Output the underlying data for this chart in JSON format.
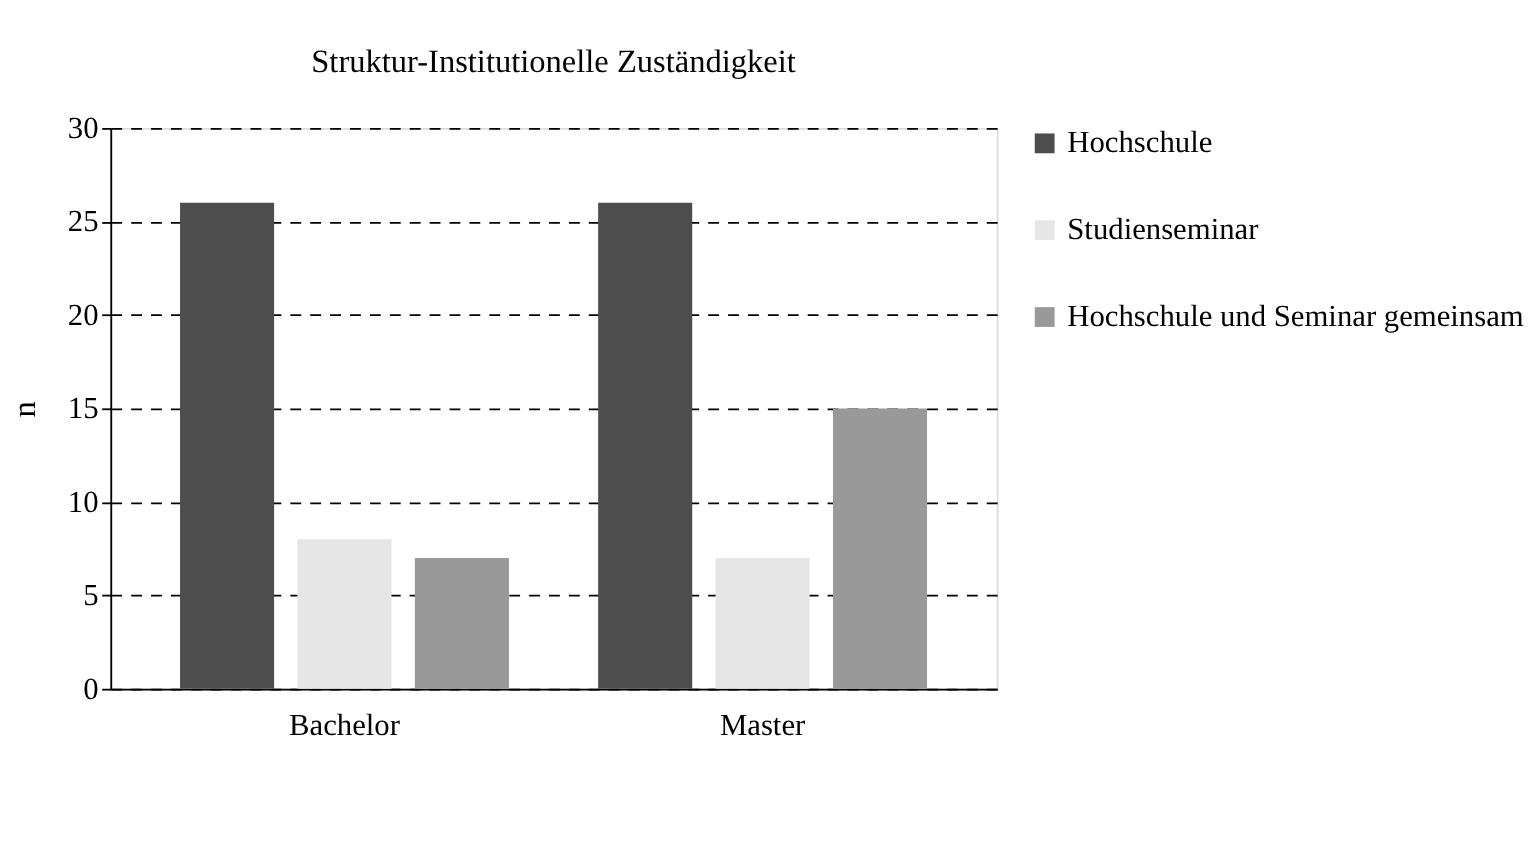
{
  "chart_data": {
    "type": "bar",
    "title": "Struktur-Institutionelle Zuständigkeit",
    "ylabel": "n",
    "categories": [
      "Bachelor",
      "Master"
    ],
    "series": [
      {
        "name": "Hochschule",
        "color": "#4d4d4d",
        "values": [
          26,
          26
        ]
      },
      {
        "name": "Studienseminar",
        "color": "#e6e6e6",
        "values": [
          8,
          7
        ]
      },
      {
        "name": "Hochschule und Seminar gemeinsam",
        "color": "#999999",
        "values": [
          7,
          15
        ]
      }
    ],
    "ylim": [
      0,
      30
    ],
    "yticks": [
      0,
      5,
      10,
      15,
      20,
      25,
      30
    ],
    "grid": "y",
    "legend": "right"
  }
}
